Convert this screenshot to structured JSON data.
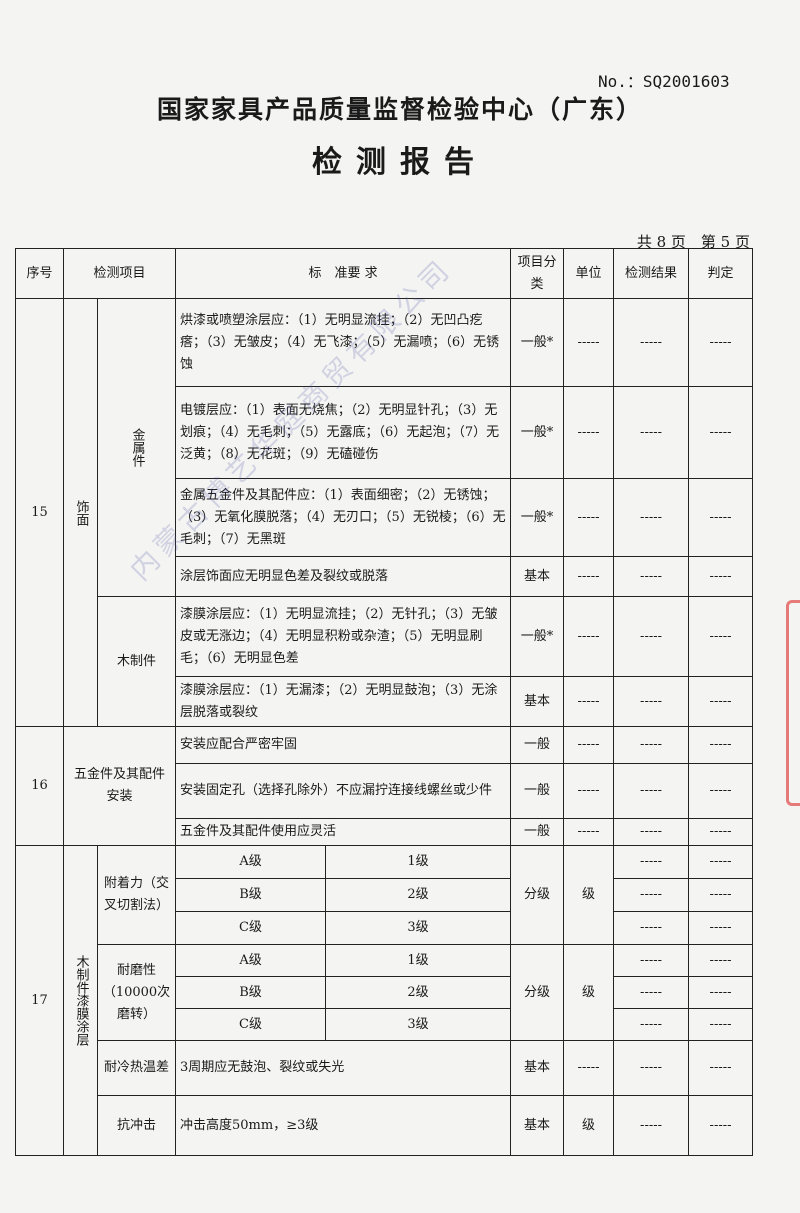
{
  "header": {
    "no": "No.：SQ2001603",
    "org": "国家家具产品质量监督检验中心（广东）",
    "title": "检测报告",
    "pages": "共 8 页　第 5 页"
  },
  "watermark": "内蒙古博艺华庭商贸有限公司",
  "columns": {
    "no": "序号",
    "item": "检测项目",
    "req": "标　准要 求",
    "cls": "项目分类",
    "unit": "单位",
    "result": "检测结果",
    "verdict": "判定"
  },
  "dash": "-----",
  "s15": {
    "no": "15",
    "cat": "饰面",
    "metal": "金属件",
    "wood": "木制件",
    "r": [
      {
        "req": "烘漆或喷塑涂层应：（1）无明显流挂；（2）无凹凸疙瘩；（3）无皱皮；（4）无飞漆；（5）无漏喷；（6）无锈蚀",
        "cls": "一般*"
      },
      {
        "req": "电镀层应：（1）表面无烧焦；（2）无明显针孔；（3）无划痕；（4）无毛刺；（5）无露底；（6）无起泡；（7）无泛黄；（8）无花斑；（9）无磕碰伤",
        "cls": "一般*"
      },
      {
        "req": "金属五金件及其配件应：（1）表面细密；（2）无锈蚀；（3）无氧化膜脱落；（4）无刃口；（5）无锐棱；（6）无毛刺；（7）无黑斑",
        "cls": "一般*"
      },
      {
        "req": "涂层饰面应无明显色差及裂纹或脱落",
        "cls": "基本"
      },
      {
        "req": "漆膜涂层应：（1）无明显流挂；（2）无针孔；（3）无皱皮或无涨边；（4）无明显积粉或杂渣；（5）无明显刷毛；（6）无明显色差",
        "cls": "一般*"
      },
      {
        "req": "漆膜涂层应：（1）无漏漆；（2）无明显鼓泡；（3）无涂层脱落或裂纹",
        "cls": "基本"
      }
    ]
  },
  "s16": {
    "no": "16",
    "item": "五金件及其配件安装",
    "r": [
      {
        "req": "安装应配合严密牢固",
        "cls": "一般"
      },
      {
        "req": "安装固定孔（选择孔除外）不应漏拧连接线螺丝或少件",
        "cls": "一般"
      },
      {
        "req": "五金件及其配件使用应灵活",
        "cls": "一般"
      }
    ]
  },
  "s17": {
    "no": "17",
    "cat": "木制件漆膜涂层",
    "adhesion": {
      "item": "附着力（交叉切割法）",
      "levels": [
        [
          "A级",
          "1级"
        ],
        [
          "B级",
          "2级"
        ],
        [
          "C级",
          "3级"
        ]
      ],
      "cls": "分级",
      "unit": "级"
    },
    "abrasion": {
      "item": "耐磨性（10000次磨转）",
      "levels": [
        [
          "A级",
          "1级"
        ],
        [
          "B级",
          "2级"
        ],
        [
          "C级",
          "3级"
        ]
      ],
      "cls": "分级",
      "unit": "级"
    },
    "thermal": {
      "item": "耐冷热温差",
      "req": "3周期应无鼓泡、裂纹或失光",
      "cls": "基本"
    },
    "impact": {
      "item": "抗冲击",
      "req": "冲击高度50mm，≥3级",
      "cls": "基本",
      "unit": "级"
    }
  }
}
